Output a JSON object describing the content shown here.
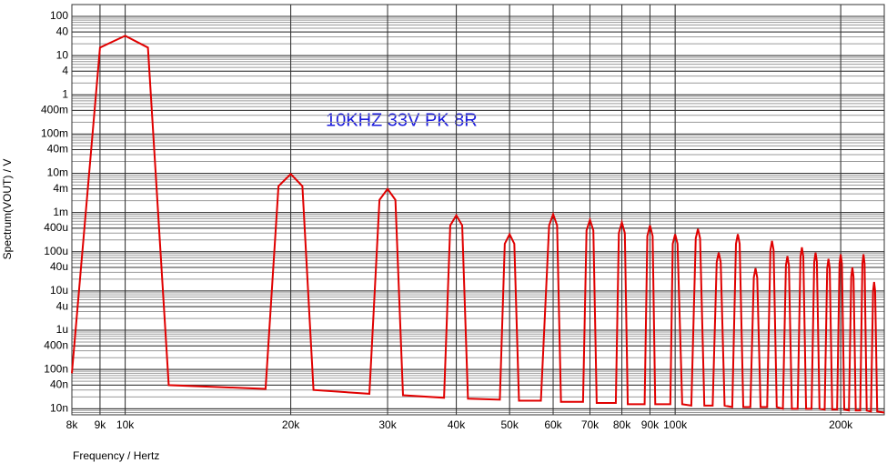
{
  "chart_data": {
    "type": "line",
    "annotation": "10KHZ 33V PK 8R",
    "xlabel": "Frequency / Hertz",
    "ylabel": "Spectrum(VOUT) / V",
    "xscale": "log",
    "yscale": "log",
    "grid": true,
    "minor_grid": true,
    "xlim": [
      8000,
      240000
    ],
    "ylim": [
      7e-09,
      200
    ],
    "xticks": [
      {
        "value": 8000,
        "label": "8k"
      },
      {
        "value": 9000,
        "label": "9k"
      },
      {
        "value": 10000,
        "label": "10k"
      },
      {
        "value": 20000,
        "label": "20k"
      },
      {
        "value": 30000,
        "label": "30k"
      },
      {
        "value": 40000,
        "label": "40k"
      },
      {
        "value": 50000,
        "label": "50k"
      },
      {
        "value": 60000,
        "label": "60k"
      },
      {
        "value": 70000,
        "label": "70k"
      },
      {
        "value": 80000,
        "label": "80k"
      },
      {
        "value": 90000,
        "label": "90k"
      },
      {
        "value": 100000,
        "label": "100k"
      },
      {
        "value": 200000,
        "label": "200k"
      }
    ],
    "yticks": [
      100,
      40,
      10,
      4,
      1,
      {
        "value": 0.4,
        "label": "400m"
      },
      {
        "value": 0.1,
        "label": "100m"
      },
      {
        "value": 0.04,
        "label": "40m"
      },
      {
        "value": 0.01,
        "label": "10m"
      },
      {
        "value": 0.004,
        "label": "4m"
      },
      {
        "value": 0.001,
        "label": "1m"
      },
      {
        "value": 0.0004,
        "label": "400u"
      },
      {
        "value": 0.0001,
        "label": "100u"
      },
      {
        "value": 4e-05,
        "label": "40u"
      },
      {
        "value": 1e-05,
        "label": "10u"
      },
      {
        "value": 4e-06,
        "label": "4u"
      },
      {
        "value": 1e-06,
        "label": "1u"
      },
      {
        "value": 4e-07,
        "label": "400n"
      },
      {
        "value": 1e-07,
        "label": "100n"
      },
      {
        "value": 4e-08,
        "label": "40n"
      },
      {
        "value": 1e-08,
        "label": "10n"
      }
    ],
    "series": [
      {
        "color": "#e00000",
        "x": [
          8000,
          9000,
          10000,
          11000,
          12000,
          18000,
          19000,
          20000,
          21000,
          22000,
          27800,
          29000,
          30000,
          31000,
          32000,
          38000,
          39000,
          40000,
          41000,
          42000,
          48000,
          49000,
          50000,
          51000,
          52000,
          57000,
          59000,
          60000,
          61000,
          62000,
          68000,
          69000,
          70000,
          71000,
          72000,
          78000,
          79000,
          80000,
          81000,
          82000,
          88000,
          89000,
          90000,
          91000,
          92000,
          98000,
          99000,
          100000,
          101000,
          103000,
          107000,
          109000,
          110000,
          111000,
          113000,
          117000,
          119000,
          120000,
          121000,
          123000,
          127000,
          129000,
          130000,
          131000,
          133000,
          137000,
          139000,
          140000,
          141000,
          143000,
          147000,
          149000,
          150000,
          151000,
          153000,
          157000,
          159000,
          160000,
          161000,
          163000,
          167000,
          169000,
          170000,
          171000,
          173000,
          177000,
          179000,
          180000,
          181000,
          183000,
          187000,
          189000,
          190000,
          191000,
          193000,
          197000,
          199000,
          200000,
          201000,
          203000,
          207000,
          209000,
          210000,
          211000,
          213000,
          217000,
          219000,
          220000,
          221000,
          223000,
          227000,
          229000,
          230000,
          231000,
          233000,
          240000
        ],
        "values": [
          8e-08,
          16,
          32,
          16,
          4e-08,
          3.2e-08,
          0.0047,
          0.0096,
          0.0047,
          3e-08,
          2.4e-08,
          0.0021,
          0.004,
          0.0021,
          2.2e-08,
          1.9e-08,
          0.00047,
          0.00085,
          0.00047,
          1.8e-08,
          1.7e-08,
          0.00016,
          0.00028,
          0.00016,
          1.6e-08,
          1.6e-08,
          0.00047,
          0.0009,
          0.00047,
          1.5e-08,
          1.5e-08,
          0.00035,
          0.00065,
          0.00035,
          1.4e-08,
          1.4e-08,
          0.0003,
          0.00056,
          0.0003,
          1.3e-08,
          1.3e-08,
          0.00025,
          0.00047,
          0.00025,
          1.3e-08,
          1.3e-08,
          0.00016,
          0.00028,
          0.00016,
          1.3e-08,
          1.2e-08,
          0.00022,
          0.00038,
          0.00022,
          1.2e-08,
          1.2e-08,
          5.5e-05,
          9.5e-05,
          5.5e-05,
          1.2e-08,
          1.1e-08,
          0.00016,
          0.00028,
          0.00016,
          1.1e-08,
          1.1e-08,
          2.2e-05,
          3.8e-05,
          2.2e-05,
          1.1e-08,
          1.1e-08,
          0.00011,
          0.00019,
          0.00011,
          1.1e-08,
          1e-08,
          4.5e-05,
          7.7e-05,
          4.5e-05,
          1e-08,
          1e-08,
          7.5e-05,
          0.00013,
          7.5e-05,
          1e-08,
          1e-08,
          5.5e-05,
          9.5e-05,
          5.5e-05,
          1e-08,
          9.5e-09,
          3.8e-05,
          6.6e-05,
          3.8e-05,
          9.5e-09,
          9.5e-09,
          5e-05,
          8.6e-05,
          5e-05,
          9.5e-09,
          9e-09,
          2.3e-05,
          4e-05,
          2.3e-05,
          9e-09,
          9e-09,
          5e-05,
          8.6e-05,
          5e-05,
          9e-09,
          8.5e-09,
          1e-05,
          1.7e-05,
          1e-05,
          8.5e-09,
          8e-09
        ]
      }
    ]
  }
}
